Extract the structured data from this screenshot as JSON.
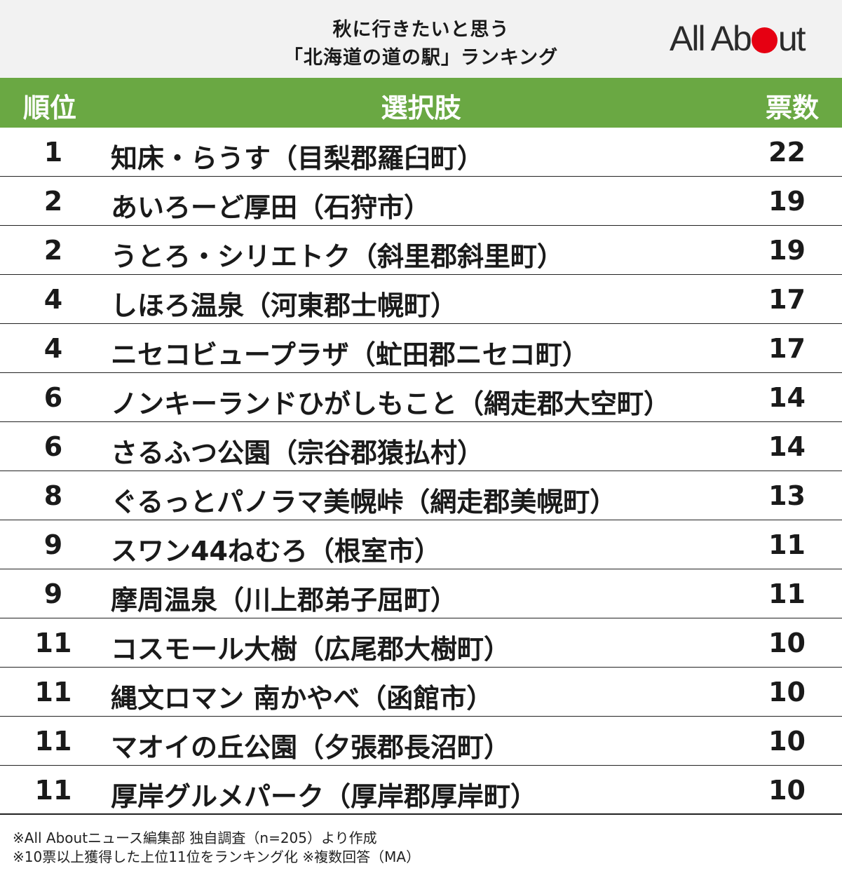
{
  "title": {
    "line1": "秋に行きたいと思う",
    "line2": "「北海道の道の駅」ランキング"
  },
  "logo": {
    "part1": "All Ab",
    "part2": "ut",
    "dot_color": "#e60012"
  },
  "table": {
    "header_color": "#6aa843",
    "headers": {
      "rank": "順位",
      "choice": "選択肢",
      "votes": "票数"
    },
    "rows": [
      {
        "rank": "1",
        "name": "知床・らうす（目梨郡羅臼町）",
        "votes": "22"
      },
      {
        "rank": "2",
        "name": "あいろーど厚田（石狩市）",
        "votes": "19"
      },
      {
        "rank": "2",
        "name": "うとろ・シリエトク（斜里郡斜里町）",
        "votes": "19"
      },
      {
        "rank": "4",
        "name": "しほろ温泉（河東郡士幌町）",
        "votes": "17"
      },
      {
        "rank": "4",
        "name": "ニセコビュープラザ（虻田郡ニセコ町）",
        "votes": "17"
      },
      {
        "rank": "6",
        "name": "ノンキーランドひがしもこと（網走郡大空町）",
        "votes": "14"
      },
      {
        "rank": "6",
        "name": "さるふつ公園（宗谷郡猿払村）",
        "votes": "14"
      },
      {
        "rank": "8",
        "name": "ぐるっとパノラマ美幌峠（網走郡美幌町）",
        "votes": "13"
      },
      {
        "rank": "9",
        "name": "スワン44ねむろ（根室市）",
        "votes": "11"
      },
      {
        "rank": "9",
        "name": "摩周温泉（川上郡弟子屈町）",
        "votes": "11"
      },
      {
        "rank": "11",
        "name": "コスモール大樹（広尾郡大樹町）",
        "votes": "10"
      },
      {
        "rank": "11",
        "name": "縄文ロマン 南かやべ（函館市）",
        "votes": "10"
      },
      {
        "rank": "11",
        "name": "マオイの丘公園（夕張郡長沼町）",
        "votes": "10"
      },
      {
        "rank": "11",
        "name": "厚岸グルメパーク（厚岸郡厚岸町）",
        "votes": "10"
      }
    ]
  },
  "notes": {
    "line1": "※All Aboutニュース編集部 独自調査（n=205）より作成",
    "line2": "※10票以上獲得した上位11位をランキング化 ※複数回答（MA）"
  }
}
